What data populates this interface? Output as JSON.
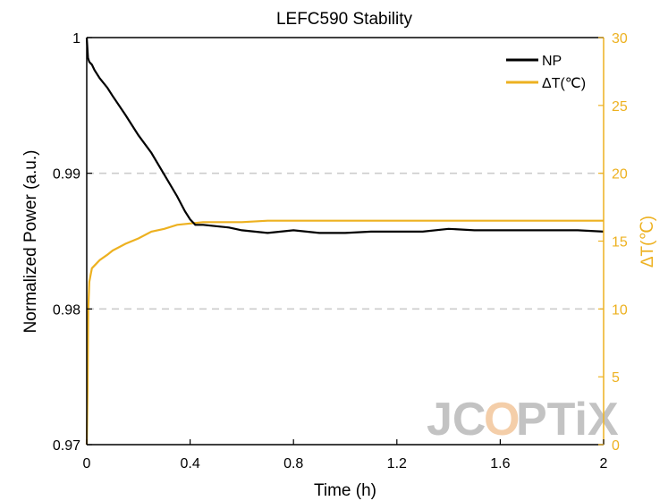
{
  "chart_data": {
    "type": "line",
    "title": "LEFC590 Stability",
    "xlabel": "Time (h)",
    "ylabel": "Normalized Power (a.u.)",
    "y2label": "ΔT(℃)",
    "xlim": [
      0,
      2
    ],
    "ylim": [
      0.97,
      1.0
    ],
    "y2lim": [
      0,
      30
    ],
    "x_ticks": [
      "0",
      "0.4",
      "0.8",
      "1.2",
      "1.6",
      "2"
    ],
    "y_ticks": [
      "0.97",
      "0.98",
      "0.99",
      "1"
    ],
    "y2_ticks": [
      "0",
      "5",
      "10",
      "15",
      "20",
      "25",
      "30"
    ],
    "grid": "dashed horizontal at 0.98 and 0.99",
    "legend_position": "top-right",
    "watermark": "JCOPTIX",
    "colors": {
      "np": "#000000",
      "dt": "#EDB120",
      "grid": "#cccccc",
      "watermark": "#bdbdbd",
      "watermark_accent": "#f3c9a0"
    },
    "series": [
      {
        "name": "NP",
        "axis": "left",
        "x": [
          0,
          0.005,
          0.01,
          0.02,
          0.03,
          0.05,
          0.08,
          0.1,
          0.15,
          0.2,
          0.25,
          0.3,
          0.35,
          0.38,
          0.4,
          0.42,
          0.45,
          0.5,
          0.55,
          0.6,
          0.7,
          0.8,
          0.9,
          1.0,
          1.1,
          1.2,
          1.3,
          1.4,
          1.5,
          1.6,
          1.7,
          1.8,
          1.9,
          2.0
        ],
        "values": [
          1.0,
          0.9985,
          0.9982,
          0.998,
          0.9976,
          0.997,
          0.9963,
          0.9957,
          0.9943,
          0.9928,
          0.9915,
          0.9899,
          0.9883,
          0.9872,
          0.9866,
          0.9862,
          0.9862,
          0.9861,
          0.986,
          0.9858,
          0.9856,
          0.9858,
          0.9856,
          0.9856,
          0.9857,
          0.9857,
          0.9857,
          0.9859,
          0.9858,
          0.9858,
          0.9858,
          0.9858,
          0.9858,
          0.9857
        ]
      },
      {
        "name": "ΔT(℃)",
        "axis": "right",
        "x": [
          0,
          0.003,
          0.006,
          0.01,
          0.015,
          0.02,
          0.03,
          0.05,
          0.08,
          0.1,
          0.15,
          0.2,
          0.25,
          0.3,
          0.35,
          0.4,
          0.45,
          0.5,
          0.6,
          0.7,
          0.8,
          0.9,
          1.0,
          1.2,
          1.4,
          1.6,
          1.8,
          2.0
        ],
        "values": [
          0,
          4,
          10,
          12,
          12.5,
          13,
          13.2,
          13.6,
          14.0,
          14.3,
          14.8,
          15.2,
          15.7,
          15.9,
          16.2,
          16.3,
          16.4,
          16.4,
          16.4,
          16.5,
          16.5,
          16.5,
          16.5,
          16.5,
          16.5,
          16.5,
          16.5,
          16.5
        ]
      }
    ]
  }
}
